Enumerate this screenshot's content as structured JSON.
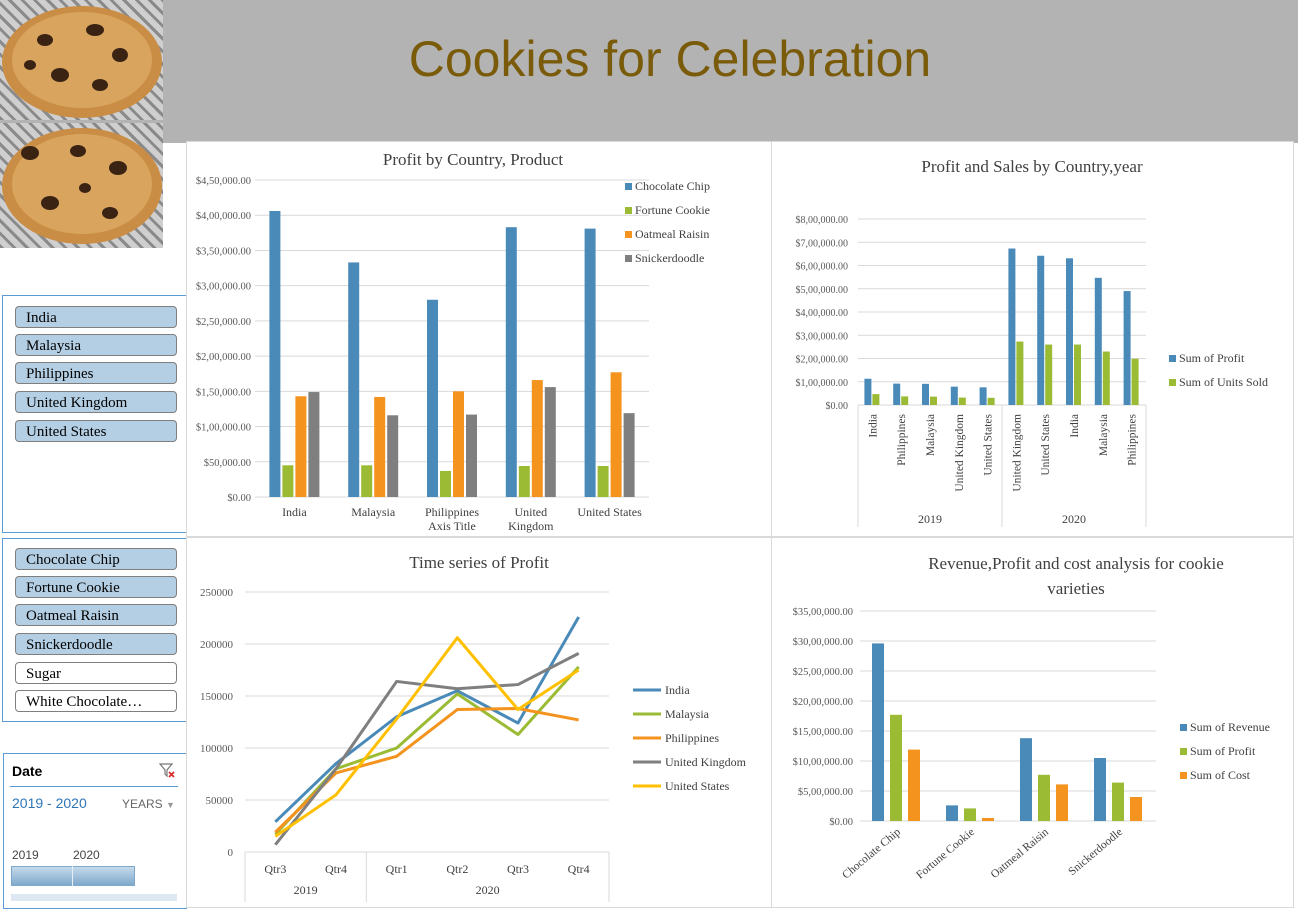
{
  "header": {
    "title": "Cookies for Celebration"
  },
  "images": [
    {
      "icon": "chocolate-chip-cookie"
    },
    {
      "icon": "chocolate-chip-cookie"
    }
  ],
  "slicers": {
    "country": {
      "items": [
        {
          "label": "India",
          "selected": true
        },
        {
          "label": "Malaysia",
          "selected": true
        },
        {
          "label": "Philippines",
          "selected": true
        },
        {
          "label": "United Kingdom",
          "selected": true
        },
        {
          "label": "United States",
          "selected": true
        }
      ]
    },
    "product": {
      "items": [
        {
          "label": "Chocolate Chip",
          "selected": true
        },
        {
          "label": "Fortune Cookie",
          "selected": true
        },
        {
          "label": "Oatmeal Raisin",
          "selected": true
        },
        {
          "label": "Snickerdoodle",
          "selected": true
        },
        {
          "label": "Sugar",
          "selected": false
        },
        {
          "label": "White Chocolate…",
          "selected": false
        }
      ]
    }
  },
  "timeline": {
    "header": "Date",
    "range": "2019 - 2020",
    "level": "YEARS",
    "years": [
      "2019",
      "2020"
    ],
    "clear_icon": "clear-filter-icon",
    "dropdown_icon": "chevron-down-icon"
  },
  "chart_data": [
    {
      "type": "bar",
      "title": "Profit by Country, Product",
      "categories": [
        "India",
        "Malaysia",
        "Philippines",
        "United Kingdom",
        "United States"
      ],
      "axis_title": "Axis Title",
      "series": [
        {
          "name": "Chocolate Chip",
          "color": "#4a8ab9",
          "values": [
            406000,
            333000,
            280000,
            383000,
            381000
          ]
        },
        {
          "name": "Fortune Cookie",
          "color": "#9bbb34",
          "values": [
            45000,
            45000,
            37000,
            44000,
            44000
          ]
        },
        {
          "name": "Oatmeal Raisin",
          "color": "#f4931e",
          "values": [
            143000,
            142000,
            150000,
            166000,
            177000
          ]
        },
        {
          "name": "Snickerdoodle",
          "color": "#7f7f7f",
          "values": [
            149000,
            116000,
            117000,
            156000,
            119000
          ]
        }
      ],
      "yticks": [
        "$0.00",
        "$50,000.00",
        "$1,00,000.00",
        "$1,50,000.00",
        "$2,00,000.00",
        "$2,50,000.00",
        "$3,00,000.00",
        "$3,50,000.00",
        "$4,00,000.00",
        "$4,50,000.00"
      ],
      "ylim": [
        0,
        450000
      ],
      "grid": true,
      "legend": "top-right"
    },
    {
      "type": "bar",
      "title": "Profit and Sales by Country,year",
      "groups": [
        {
          "year": "2019",
          "categories": [
            "India",
            "Philippines",
            "Malaysia",
            "United Kingdom",
            "United States"
          ]
        },
        {
          "year": "2020",
          "categories": [
            "United Kingdom",
            "United States",
            "India",
            "Malaysia",
            "Philippines"
          ]
        }
      ],
      "series": [
        {
          "name": "Sum of Profit",
          "color": "#4a8ab9",
          "values": [
            113000,
            92000,
            91000,
            79000,
            76000,
            673000,
            642000,
            631000,
            547000,
            490000
          ]
        },
        {
          "name": "Sum of Units Sold",
          "color": "#9bbb34",
          "values": [
            47000,
            37000,
            36000,
            32000,
            31000,
            273000,
            260000,
            260000,
            230000,
            199000
          ]
        }
      ],
      "yticks": [
        "$0.00",
        "$1,00,000.00",
        "$2,00,000.00",
        "$3,00,000.00",
        "$4,00,000.00",
        "$5,00,000.00",
        "$6,00,000.00",
        "$7,00,000.00",
        "$8,00,000.00"
      ],
      "ylim": [
        0,
        800000
      ],
      "grid": true,
      "legend": "right"
    },
    {
      "type": "line",
      "title": "Time series of  Profit",
      "x": [
        "Qtr3",
        "Qtr4",
        "Qtr1",
        "Qtr2",
        "Qtr3",
        "Qtr4"
      ],
      "x_groups": [
        {
          "label": "2019",
          "span": 2
        },
        {
          "label": "2020",
          "span": 4
        }
      ],
      "series": [
        {
          "name": "India",
          "color": "#4a8ab9",
          "values": [
            29000,
            85000,
            130000,
            155000,
            124000,
            226000
          ]
        },
        {
          "name": "Malaysia",
          "color": "#9bbb34",
          "values": [
            17000,
            80000,
            100000,
            152000,
            113000,
            178000
          ]
        },
        {
          "name": "Philippines",
          "color": "#f4931e",
          "values": [
            19000,
            76000,
            92000,
            137000,
            138000,
            127000
          ]
        },
        {
          "name": "United Kingdom",
          "color": "#7f7f7f",
          "values": [
            7000,
            80000,
            164000,
            157000,
            161000,
            191000
          ]
        },
        {
          "name": "United States",
          "color": "#ffc000",
          "values": [
            15000,
            55000,
            128000,
            206000,
            137000,
            175000
          ]
        }
      ],
      "yticks": [
        "0",
        "50000",
        "100000",
        "150000",
        "200000",
        "250000"
      ],
      "ylim": [
        0,
        250000
      ],
      "grid": true,
      "legend": "right"
    },
    {
      "type": "bar",
      "title": "Revenue,Profit and cost analysis for cookie varieties",
      "title_lines": [
        "Revenue,Profit and cost analysis for cookie",
        "varieties"
      ],
      "categories": [
        "Chocolate Chip",
        "Fortune Cookie",
        "Oatmeal Raisin",
        "Snickerdoodle"
      ],
      "series": [
        {
          "name": "Sum of Revenue",
          "color": "#4a8ab9",
          "values": [
            2960000,
            260000,
            1380000,
            1050000
          ]
        },
        {
          "name": "Sum of Profit",
          "color": "#9bbb34",
          "values": [
            1770000,
            210000,
            770000,
            640000
          ]
        },
        {
          "name": "Sum of Cost",
          "color": "#f4931e",
          "values": [
            1190000,
            50000,
            610000,
            400000
          ]
        }
      ],
      "yticks": [
        "$0.00",
        "$5,00,000.00",
        "$10,00,000.00",
        "$15,00,000.00",
        "$20,00,000.00",
        "$25,00,000.00",
        "$30,00,000.00",
        "$35,00,000.00"
      ],
      "ylim": [
        0,
        3500000
      ],
      "grid": true,
      "legend": "right"
    }
  ]
}
